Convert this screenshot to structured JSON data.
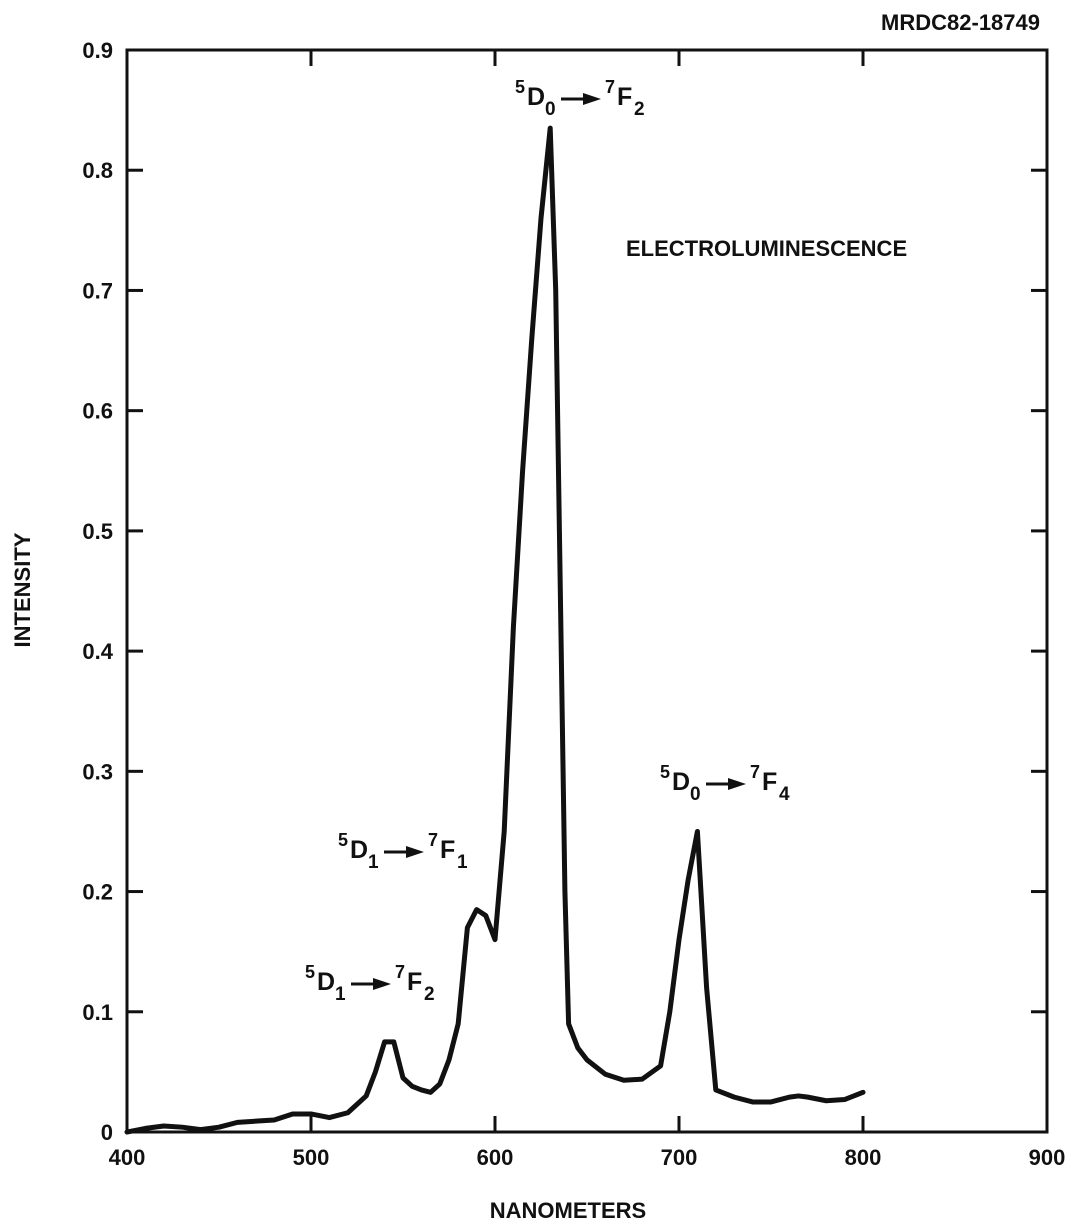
{
  "chart_data": {
    "type": "line",
    "title": "MRDC82-18749",
    "xlabel": "NANOMETERS",
    "ylabel": "INTENSITY",
    "note": "ELECTROLUMINESCENCE",
    "transitions": [
      {
        "sup1": "5",
        "term1": "D",
        "sub1": "0",
        "sup2": "7",
        "term2": "F",
        "sub2": "2"
      },
      {
        "sup1": "5",
        "term1": "D",
        "sub1": "1",
        "sup2": "7",
        "term2": "F",
        "sub2": "1"
      },
      {
        "sup1": "5",
        "term1": "D",
        "sub1": "0",
        "sup2": "7",
        "term2": "F",
        "sub2": "4"
      },
      {
        "sup1": "5",
        "term1": "D",
        "sub1": "1",
        "sup2": "7",
        "term2": "F",
        "sub2": "2"
      }
    ],
    "x": [
      400,
      410,
      420,
      430,
      440,
      450,
      460,
      470,
      480,
      490,
      500,
      510,
      520,
      530,
      535,
      540,
      545,
      550,
      555,
      560,
      565,
      570,
      575,
      580,
      585,
      590,
      595,
      600,
      605,
      610,
      615,
      620,
      625,
      630,
      633,
      635,
      638,
      640,
      645,
      650,
      660,
      670,
      680,
      690,
      695,
      700,
      705,
      710,
      715,
      720,
      730,
      740,
      750,
      760,
      765,
      770,
      780,
      790,
      800
    ],
    "series": [
      {
        "color": "#111111",
        "values": [
          0,
          0.003,
          0.005,
          0.004,
          0.002,
          0.004,
          0.008,
          0.009,
          0.01,
          0.015,
          0.015,
          0.012,
          0.016,
          0.03,
          0.05,
          0.075,
          0.075,
          0.045,
          0.038,
          0.035,
          0.033,
          0.04,
          0.06,
          0.09,
          0.17,
          0.185,
          0.18,
          0.16,
          0.25,
          0.42,
          0.55,
          0.66,
          0.76,
          0.835,
          0.7,
          0.5,
          0.2,
          0.09,
          0.07,
          0.06,
          0.048,
          0.043,
          0.044,
          0.055,
          0.1,
          0.16,
          0.21,
          0.25,
          0.12,
          0.035,
          0.029,
          0.025,
          0.025,
          0.029,
          0.03,
          0.029,
          0.026,
          0.027,
          0.033
        ]
      }
    ],
    "xlim": [
      400,
      900
    ],
    "ylim": [
      0,
      0.9
    ],
    "xticks": [
      400,
      500,
      600,
      700,
      800,
      900
    ],
    "yticks": [
      0,
      0.1,
      0.2,
      0.3,
      0.4,
      0.5,
      0.6,
      0.7,
      0.8,
      0.9
    ]
  }
}
